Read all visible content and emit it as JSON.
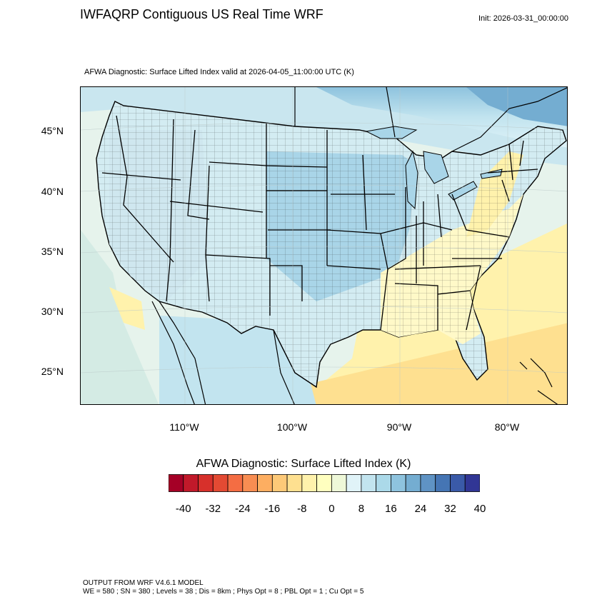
{
  "header": {
    "title": "IWFAQRP Contiguous US Real Time WRF",
    "init": "Init: 2026-03-31_00:00:00",
    "subtitle": "AFWA Diagnostic: Surface Lifted Index valid at 2026-04-05_11:00:00 UTC   (K)"
  },
  "map": {
    "lat_labels": [
      "45°N",
      "40°N",
      "35°N",
      "30°N",
      "25°N"
    ],
    "lon_labels": [
      "110°W",
      "100°W",
      "90°W",
      "80°W"
    ]
  },
  "colorbar": {
    "title": "AFWA Diagnostic: Surface Lifted Index  (K)",
    "labels": [
      "-40",
      "-32",
      "-24",
      "-16",
      "-8",
      "0",
      "8",
      "16",
      "24",
      "32",
      "40"
    ],
    "colors": [
      "#a50026",
      "#c1192a",
      "#d7302b",
      "#e34a33",
      "#f46d43",
      "#f88d52",
      "#fdae61",
      "#fdc978",
      "#fee090",
      "#fff2ac",
      "#ffffbf",
      "#eef8d8",
      "#e0f3f8",
      "#c2e4ef",
      "#abd9e9",
      "#8ec3de",
      "#74add1",
      "#5f93c4",
      "#4575b4",
      "#3a5aa8",
      "#313695"
    ]
  },
  "footer": {
    "line1": "OUTPUT FROM WRF V4.6.1 MODEL",
    "line2": "WE = 580 ; SN = 380 ; Levels = 38 ; Dis = 8km ; Phys Opt = 8 ; PBL Opt = 1 ; Cu Opt = 5"
  }
}
